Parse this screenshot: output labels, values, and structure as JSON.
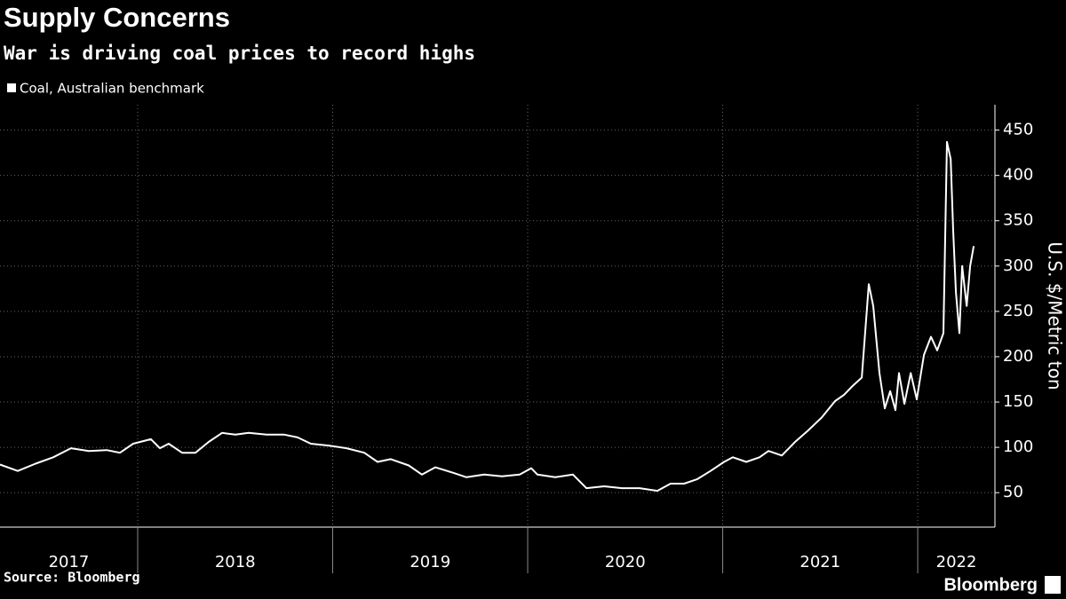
{
  "chart_data": {
    "type": "line",
    "title": "Supply Concerns",
    "subtitle": "War is driving coal prices to record highs",
    "y_label": "U.S. $/Metric ton",
    "source": "Source: Bloomberg",
    "brand": "Bloomberg",
    "grid": true,
    "xlim": [
      2017.294,
      2022.396
    ],
    "xticks": [
      2017,
      2018,
      2019,
      2020,
      2021,
      2022
    ],
    "ylim": [
      12,
      478
    ],
    "yticks": [
      50,
      100,
      150,
      200,
      250,
      300,
      350,
      400,
      450
    ],
    "x": [
      2017.294,
      2017.385,
      2017.476,
      2017.567,
      2017.658,
      2017.749,
      2017.841,
      2017.909,
      2017.977,
      2018.068,
      2018.114,
      2018.159,
      2018.228,
      2018.296,
      2018.364,
      2018.433,
      2018.501,
      2018.569,
      2018.661,
      2018.752,
      2018.82,
      2018.888,
      2018.979,
      2019.071,
      2019.162,
      2019.23,
      2019.298,
      2019.39,
      2019.458,
      2019.526,
      2019.617,
      2019.686,
      2019.777,
      2019.868,
      2019.959,
      2020.018,
      2020.05,
      2020.141,
      2020.232,
      2020.301,
      2020.392,
      2020.483,
      2020.574,
      2020.665,
      2020.733,
      2020.802,
      2020.87,
      2020.938,
      2021.007,
      2021.052,
      2021.121,
      2021.189,
      2021.235,
      2021.303,
      2021.371,
      2021.44,
      2021.508,
      2021.576,
      2021.622,
      2021.667,
      2021.713,
      2021.749,
      2021.772,
      2021.804,
      2021.831,
      2021.859,
      2021.886,
      2021.904,
      2021.932,
      2021.964,
      2021.995,
      2022.032,
      2022.068,
      2022.1,
      2022.132,
      2022.15,
      2022.169,
      2022.182,
      2022.196,
      2022.214,
      2022.228,
      2022.251,
      2022.269,
      2022.287
    ],
    "series": [
      {
        "name": "Coal, Australian benchmark",
        "color": "#ffffff",
        "values": [
          81,
          74,
          82,
          89,
          99,
          96,
          97,
          94,
          104,
          109,
          99,
          104,
          94,
          94,
          106,
          116,
          114,
          116,
          114,
          114,
          111,
          104,
          102,
          99,
          94,
          84,
          87,
          80,
          70,
          78,
          72,
          67,
          70,
          68,
          70,
          77,
          70,
          67,
          70,
          55,
          57,
          55,
          55,
          52,
          60,
          60,
          65,
          74,
          84,
          89,
          84,
          89,
          96,
          91,
          106,
          119,
          133,
          151,
          158,
          168,
          177,
          280,
          256,
          182,
          143,
          162,
          141,
          182,
          148,
          182,
          153,
          202,
          222,
          207,
          226,
          437,
          418,
          339,
          271,
          226,
          300,
          256,
          300,
          322
        ]
      }
    ]
  }
}
